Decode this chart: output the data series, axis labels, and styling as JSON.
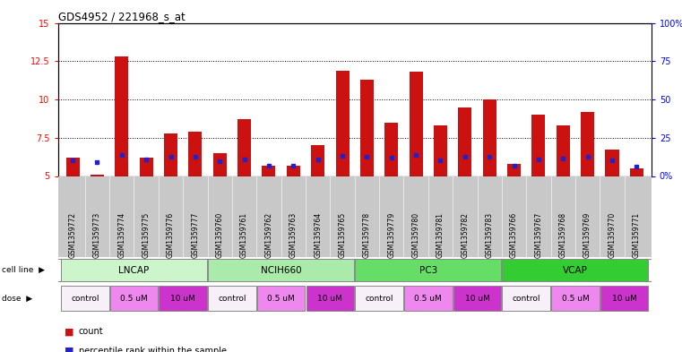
{
  "title": "GDS4952 / 221968_s_at",
  "samples": [
    "GSM1359772",
    "GSM1359773",
    "GSM1359774",
    "GSM1359775",
    "GSM1359776",
    "GSM1359777",
    "GSM1359760",
    "GSM1359761",
    "GSM1359762",
    "GSM1359763",
    "GSM1359764",
    "GSM1359765",
    "GSM1359778",
    "GSM1359779",
    "GSM1359780",
    "GSM1359781",
    "GSM1359782",
    "GSM1359783",
    "GSM1359766",
    "GSM1359767",
    "GSM1359768",
    "GSM1359769",
    "GSM1359770",
    "GSM1359771"
  ],
  "red_values": [
    6.2,
    5.1,
    12.8,
    6.2,
    7.8,
    7.9,
    6.5,
    8.7,
    5.65,
    5.7,
    7.0,
    11.9,
    11.3,
    8.5,
    11.8,
    8.3,
    9.5,
    10.0,
    5.8,
    9.0,
    8.3,
    9.2,
    6.7,
    5.5
  ],
  "blue_values": [
    6.0,
    5.9,
    6.35,
    6.1,
    6.25,
    6.25,
    5.95,
    6.1,
    5.65,
    5.7,
    6.1,
    6.3,
    6.28,
    6.2,
    6.35,
    6.05,
    6.25,
    6.25,
    5.68,
    6.1,
    6.15,
    6.25,
    6.05,
    5.62
  ],
  "cell_lines": [
    "LNCAP",
    "NCIH660",
    "PC3",
    "VCAP"
  ],
  "cell_line_ranges": [
    [
      0,
      6
    ],
    [
      6,
      12
    ],
    [
      12,
      18
    ],
    [
      18,
      24
    ]
  ],
  "cell_line_colors": [
    "#ccf5cc",
    "#aaeaaa",
    "#66dd66",
    "#33cc33"
  ],
  "dose_labels": [
    "control",
    "0.5 uM",
    "10 uM",
    "control",
    "0.5 uM",
    "10 uM",
    "control",
    "0.5 uM",
    "10 uM",
    "control",
    "0.5 uM",
    "10 uM"
  ],
  "dose_ranges": [
    [
      0,
      2
    ],
    [
      2,
      4
    ],
    [
      4,
      6
    ],
    [
      6,
      8
    ],
    [
      8,
      10
    ],
    [
      10,
      12
    ],
    [
      12,
      14
    ],
    [
      14,
      16
    ],
    [
      16,
      18
    ],
    [
      18,
      20
    ],
    [
      20,
      22
    ],
    [
      22,
      24
    ]
  ],
  "dose_colors": [
    "#f8f0f8",
    "#ee88ee",
    "#cc33cc",
    "#f8f0f8",
    "#ee88ee",
    "#cc33cc",
    "#f8f0f8",
    "#ee88ee",
    "#cc33cc",
    "#f8f0f8",
    "#ee88ee",
    "#cc33cc"
  ],
  "ylim_left": [
    5,
    15
  ],
  "ylim_right": [
    0,
    100
  ],
  "yticks_left": [
    5,
    7.5,
    10,
    12.5,
    15
  ],
  "ytick_labels_left": [
    "5",
    "7.5",
    "10",
    "12.5",
    "15"
  ],
  "ytick_labels_right": [
    "0%",
    "25",
    "50",
    "75",
    "100%"
  ],
  "bar_color": "#cc1111",
  "blue_color": "#2222cc",
  "xtick_bg_color": "#c8c8c8",
  "legend_count": "count",
  "legend_pct": "percentile rank within the sample"
}
